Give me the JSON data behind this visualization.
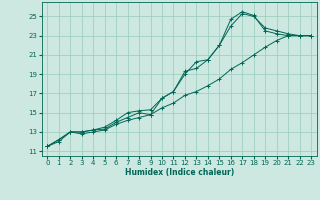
{
  "title": "",
  "xlabel": "Humidex (Indice chaleur)",
  "ylabel": "",
  "background_color": "#cce8e0",
  "grid_color": "#99ccbb",
  "line_color": "#006655",
  "xlim": [
    -0.5,
    23.5
  ],
  "ylim": [
    10.5,
    26.5
  ],
  "xticks": [
    0,
    1,
    2,
    3,
    4,
    5,
    6,
    7,
    8,
    9,
    10,
    11,
    12,
    13,
    14,
    15,
    16,
    17,
    18,
    19,
    20,
    21,
    22,
    23
  ],
  "yticks": [
    11,
    13,
    15,
    17,
    19,
    21,
    23,
    25
  ],
  "series": [
    {
      "x": [
        0,
        1,
        2,
        3,
        4,
        5,
        6,
        7,
        8,
        9,
        10,
        11,
        12,
        13,
        14,
        15,
        16,
        17,
        18,
        19,
        20,
        21,
        22,
        23
      ],
      "y": [
        11.5,
        12.2,
        13.0,
        13.0,
        13.2,
        13.3,
        14.0,
        14.5,
        15.0,
        14.8,
        16.5,
        17.2,
        19.3,
        19.6,
        20.5,
        22.0,
        24.7,
        25.5,
        25.1,
        23.5,
        23.2,
        23.0,
        23.0,
        23.0
      ]
    },
    {
      "x": [
        0,
        1,
        2,
        3,
        4,
        5,
        6,
        7,
        8,
        9,
        10,
        11,
        12,
        13,
        14,
        15,
        16,
        17,
        18,
        19,
        20,
        21,
        22,
        23
      ],
      "y": [
        11.5,
        12.2,
        13.0,
        13.0,
        13.2,
        13.5,
        14.2,
        15.0,
        15.2,
        15.3,
        16.5,
        17.2,
        19.0,
        20.3,
        20.5,
        22.0,
        24.0,
        25.3,
        25.0,
        23.8,
        23.5,
        23.2,
        23.0,
        23.0
      ]
    },
    {
      "x": [
        0,
        1,
        2,
        3,
        4,
        5,
        6,
        7,
        8,
        9,
        10,
        11,
        12,
        13,
        14,
        15,
        16,
        17,
        18,
        19,
        20,
        21,
        22,
        23
      ],
      "y": [
        11.5,
        12.0,
        13.0,
        12.8,
        13.0,
        13.2,
        13.8,
        14.2,
        14.5,
        14.8,
        15.5,
        16.0,
        16.8,
        17.2,
        17.8,
        18.5,
        19.5,
        20.2,
        21.0,
        21.8,
        22.5,
        23.0,
        23.0,
        23.0
      ]
    }
  ],
  "xlabel_fontsize": 5.5,
  "tick_fontsize": 5,
  "linewidth": 0.7,
  "marker_size": 3
}
